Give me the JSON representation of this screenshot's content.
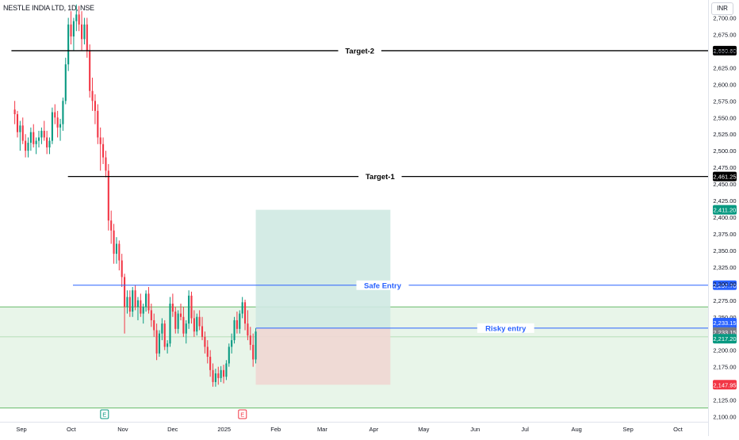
{
  "header": {
    "symbol_line": "NESTLE INDIA LTD, 1D, NSE",
    "currency": "INR"
  },
  "colors": {
    "up": "#089981",
    "down": "#f23645",
    "zone_fill": "#e8f5e9",
    "zone_border": "#66bb6a",
    "profit_fill": "#cfe9e2",
    "loss_fill": "#f0d7d3",
    "target_line": "#000000",
    "entry_line": "#2962ff",
    "axis_text": "#131722"
  },
  "chart_data": {
    "type": "candlestick",
    "y_ticks": [
      2100,
      2125,
      2150,
      2175,
      2200,
      2225,
      2250,
      2275,
      2300,
      2325,
      2350,
      2375,
      2400,
      2425,
      2450,
      2475,
      2500,
      2525,
      2550,
      2575,
      2600,
      2625,
      2650,
      2675,
      2700
    ],
    "y_tick_labels": [
      "2,100.00",
      "2,125.00",
      "2,150.00",
      "2,175.00",
      "2,200.00",
      "2,225.00",
      "2,250.00",
      "2,275.00",
      "2,300.00",
      "2,325.00",
      "2,350.00",
      "2,375.00",
      "2,400.00",
      "2,425.00",
      "2,450.00",
      "2,475.00",
      "2,500.00",
      "2,525.00",
      "2,550.00",
      "2,575.00",
      "2,600.00",
      "2,625.00",
      "2,650.00",
      "2,675.00",
      "2,700.00"
    ],
    "ylim": [
      2093,
      2718
    ],
    "x_labels": [
      "Sep",
      "Oct",
      "Nov",
      "Dec",
      "2025",
      "Feb",
      "Mar",
      "Apr",
      "May",
      "Jun",
      "Jul",
      "Aug",
      "Sep",
      "Oct"
    ],
    "x_label_days": [
      4,
      34,
      65,
      95,
      126,
      157,
      185,
      216,
      246,
      277,
      307,
      338,
      369,
      399
    ],
    "xlim": [
      -8,
      408
    ],
    "candles_start_day": 0,
    "candles_end_day": 145,
    "candles_ohlc": [
      [
        2562,
        2575,
        2540,
        2555
      ],
      [
        2555,
        2560,
        2520,
        2528
      ],
      [
        2528,
        2545,
        2500,
        2538
      ],
      [
        2538,
        2550,
        2510,
        2515
      ],
      [
        2515,
        2525,
        2490,
        2500
      ],
      [
        2500,
        2520,
        2490,
        2512
      ],
      [
        2512,
        2535,
        2500,
        2528
      ],
      [
        2528,
        2540,
        2505,
        2510
      ],
      [
        2510,
        2520,
        2495,
        2515
      ],
      [
        2515,
        2530,
        2505,
        2520
      ],
      [
        2520,
        2535,
        2510,
        2530
      ],
      [
        2530,
        2545,
        2515,
        2520
      ],
      [
        2520,
        2530,
        2495,
        2505
      ],
      [
        2505,
        2520,
        2495,
        2515
      ],
      [
        2515,
        2565,
        2510,
        2558
      ],
      [
        2558,
        2570,
        2540,
        2550
      ],
      [
        2550,
        2560,
        2520,
        2535
      ],
      [
        2535,
        2548,
        2515,
        2540
      ],
      [
        2540,
        2580,
        2530,
        2575
      ],
      [
        2575,
        2640,
        2570,
        2630
      ],
      [
        2630,
        2700,
        2620,
        2690
      ],
      [
        2690,
        2710,
        2660,
        2672
      ],
      [
        2672,
        2700,
        2650,
        2695
      ],
      [
        2695,
        2720,
        2680,
        2705
      ],
      [
        2705,
        2718,
        2680,
        2690
      ],
      [
        2690,
        2710,
        2650,
        2668
      ],
      [
        2668,
        2700,
        2660,
        2690
      ],
      [
        2690,
        2700,
        2640,
        2650
      ],
      [
        2650,
        2660,
        2580,
        2590
      ],
      [
        2590,
        2610,
        2560,
        2575
      ],
      [
        2575,
        2585,
        2540,
        2560
      ],
      [
        2560,
        2570,
        2510,
        2520
      ],
      [
        2520,
        2535,
        2470,
        2510
      ],
      [
        2510,
        2520,
        2480,
        2490
      ],
      [
        2490,
        2500,
        2460,
        2470
      ],
      [
        2470,
        2480,
        2380,
        2395
      ],
      [
        2395,
        2410,
        2360,
        2380
      ],
      [
        2380,
        2390,
        2330,
        2345
      ],
      [
        2345,
        2370,
        2330,
        2360
      ],
      [
        2360,
        2365,
        2320,
        2335
      ],
      [
        2335,
        2345,
        2295,
        2310
      ],
      [
        2310,
        2315,
        2225,
        2265
      ],
      [
        2265,
        2290,
        2255,
        2280
      ],
      [
        2280,
        2290,
        2250,
        2258
      ],
      [
        2258,
        2295,
        2250,
        2290
      ],
      [
        2290,
        2298,
        2260,
        2265
      ],
      [
        2265,
        2280,
        2245,
        2275
      ],
      [
        2275,
        2285,
        2250,
        2255
      ],
      [
        2255,
        2270,
        2240,
        2265
      ],
      [
        2265,
        2290,
        2258,
        2285
      ],
      [
        2285,
        2295,
        2255,
        2260
      ],
      [
        2260,
        2270,
        2235,
        2245
      ],
      [
        2245,
        2255,
        2220,
        2230
      ],
      [
        2230,
        2240,
        2185,
        2195
      ],
      [
        2195,
        2230,
        2190,
        2225
      ],
      [
        2225,
        2248,
        2215,
        2240
      ],
      [
        2240,
        2245,
        2200,
        2205
      ],
      [
        2205,
        2215,
        2195,
        2210
      ],
      [
        2210,
        2280,
        2205,
        2270
      ],
      [
        2270,
        2285,
        2250,
        2258
      ],
      [
        2258,
        2265,
        2225,
        2232
      ],
      [
        2232,
        2260,
        2225,
        2255
      ],
      [
        2255,
        2270,
        2245,
        2250
      ],
      [
        2250,
        2265,
        2220,
        2225
      ],
      [
        2225,
        2245,
        2210,
        2240
      ],
      [
        2240,
        2290,
        2232,
        2282
      ],
      [
        2282,
        2288,
        2240,
        2248
      ],
      [
        2248,
        2260,
        2220,
        2228
      ],
      [
        2228,
        2255,
        2222,
        2250
      ],
      [
        2250,
        2260,
        2230,
        2236
      ],
      [
        2236,
        2250,
        2215,
        2220
      ],
      [
        2220,
        2228,
        2195,
        2205
      ],
      [
        2205,
        2215,
        2180,
        2190
      ],
      [
        2190,
        2200,
        2160,
        2170
      ],
      [
        2170,
        2180,
        2145,
        2152
      ],
      [
        2152,
        2172,
        2145,
        2165
      ],
      [
        2165,
        2175,
        2148,
        2158
      ],
      [
        2158,
        2176,
        2152,
        2170
      ],
      [
        2170,
        2178,
        2150,
        2160
      ],
      [
        2160,
        2185,
        2155,
        2180
      ],
      [
        2180,
        2210,
        2175,
        2205
      ],
      [
        2205,
        2225,
        2195,
        2215
      ],
      [
        2215,
        2250,
        2210,
        2245
      ],
      [
        2245,
        2258,
        2225,
        2232
      ],
      [
        2232,
        2260,
        2225,
        2255
      ],
      [
        2255,
        2280,
        2248,
        2272
      ],
      [
        2272,
        2276,
        2230,
        2240
      ],
      [
        2240,
        2260,
        2215,
        2222
      ],
      [
        2222,
        2235,
        2200,
        2208
      ],
      [
        2208,
        2225,
        2175,
        2186
      ],
      [
        2186,
        2233,
        2180,
        2228
      ]
    ],
    "horizontal_lines": [
      {
        "label": "Target-2",
        "value": 2650.6,
        "value_label": "2,650.60",
        "style": "target",
        "start_day": -2
      },
      {
        "label": "Target-1",
        "value": 2461.25,
        "value_label": "2,461.25",
        "style": "target",
        "start_day": 32
      },
      {
        "label": "Safe Entry",
        "value": 2297.7,
        "value_label": "2,297.70",
        "style": "entry",
        "start_day": 35
      },
      {
        "label": "Risky entry",
        "value": 2233.15,
        "value_label": "2,233.15",
        "style": "entry",
        "start_day": 145
      }
    ],
    "zone": {
      "top": 2265,
      "bottom": 2113,
      "mid": 2220
    },
    "position": {
      "start_day": 145,
      "end_day": 226,
      "entry": 2233.15,
      "target": 2411.2,
      "stop": 2147.95
    },
    "price_tags": [
      {
        "value": 2411.2,
        "text": "2,411.20",
        "color": "#089981"
      },
      {
        "value": 2233.15,
        "text": "2,233.15",
        "color": "#2962ff",
        "offset": -7
      },
      {
        "value": 2233.15,
        "text": "2,233.15",
        "color": "#787b86",
        "offset": 5
      },
      {
        "value": 2217.2,
        "text": "2,217.20",
        "color": "#089981"
      },
      {
        "value": 2147.95,
        "text": "2,147.95",
        "color": "#f23645"
      }
    ],
    "event_markers": [
      {
        "day": 54,
        "letter": "E",
        "color": "#089981"
      },
      {
        "day": 137,
        "letter": "E",
        "color": "#f23645"
      }
    ]
  }
}
